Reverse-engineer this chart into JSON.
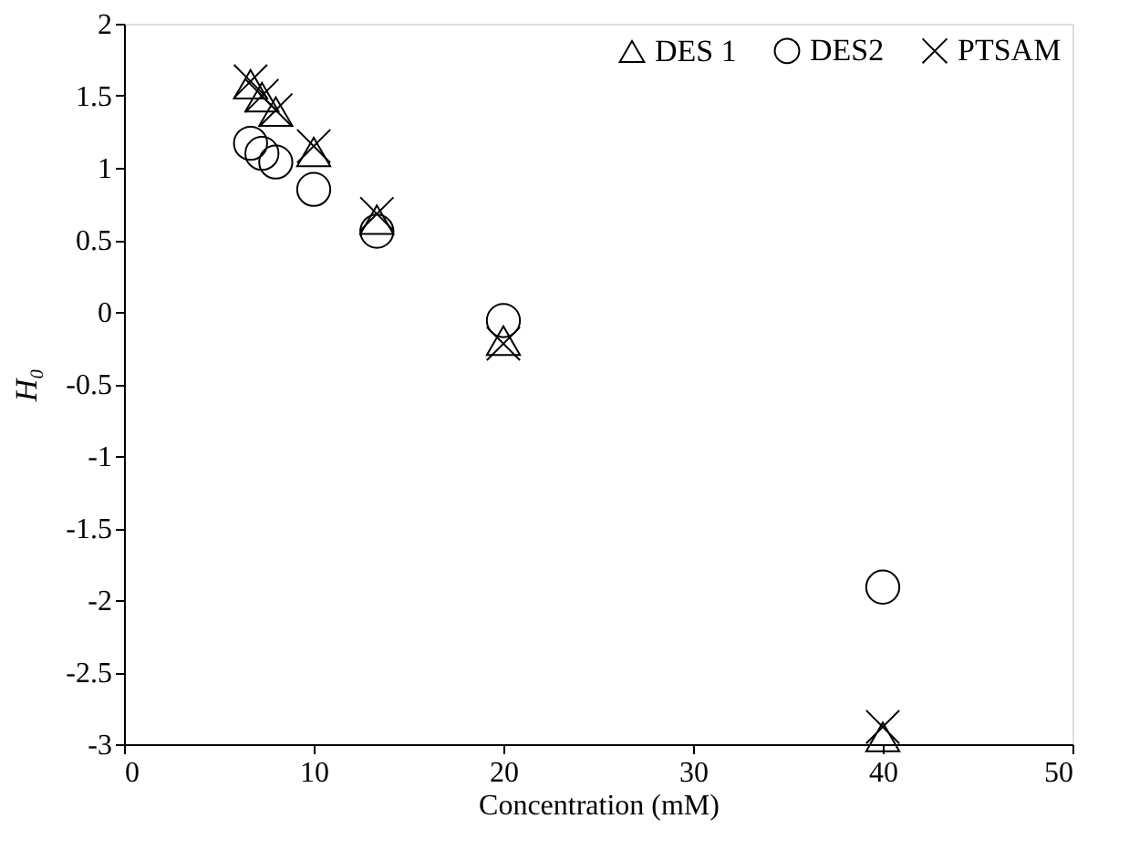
{
  "chart_data": {
    "type": "scatter",
    "xlabel": "Concentration (mM)",
    "ylabel": "H₀",
    "x": [
      6.67,
      7.27,
      8,
      10,
      13.33,
      20,
      40
    ],
    "series": [
      {
        "name": "DES 1",
        "color": "#000000",
        "marker": "triangle",
        "values": [
          1.58,
          1.49,
          1.39,
          1.11,
          0.64,
          -0.2,
          -2.95
        ]
      },
      {
        "name": "DES2",
        "color": "#000000",
        "marker": "circle",
        "values": [
          1.17,
          1.1,
          1.04,
          0.85,
          0.56,
          -0.06,
          -1.91
        ]
      },
      {
        "name": "PTSAM",
        "color": "#000000",
        "marker": "cross",
        "values": [
          1.6,
          1.5,
          1.4,
          1.15,
          0.68,
          -0.22,
          -2.88
        ]
      }
    ],
    "xlim": [
      0,
      50
    ],
    "xticks": [
      0,
      10,
      20,
      30,
      40,
      50
    ],
    "ylim": [
      -3,
      2
    ],
    "yticks": [
      -3,
      -2.5,
      -2,
      -1.5,
      -1,
      -0.5,
      0,
      0.5,
      1,
      1.5,
      2
    ],
    "grid": false,
    "legend": "top right"
  }
}
